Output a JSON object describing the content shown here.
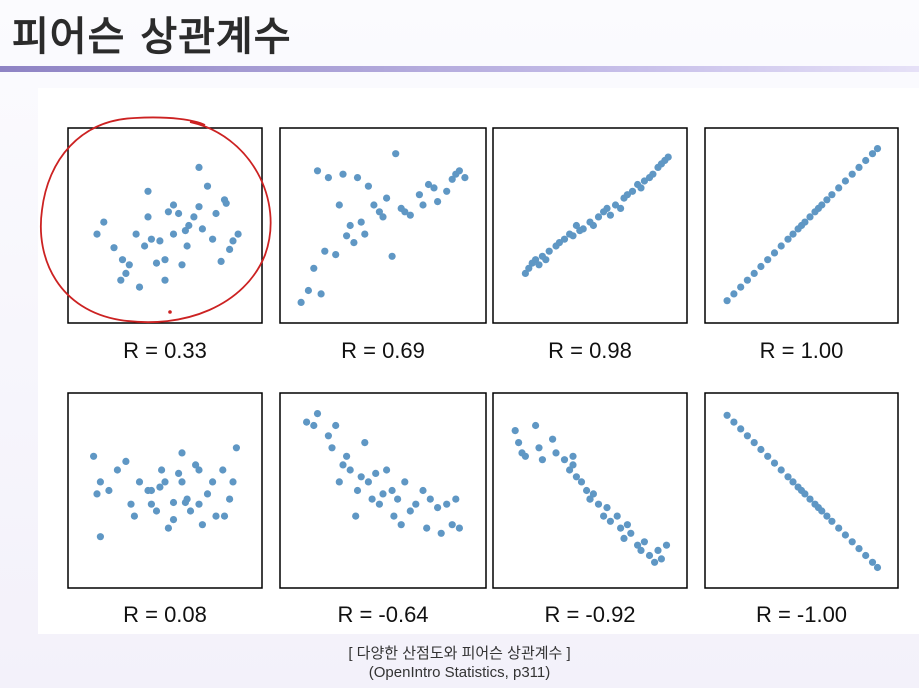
{
  "page": {
    "title": "피어슨 상관계수",
    "caption_line1": "[ 다양한 산점도와 피어슨 상관계수 ]",
    "caption_line2": "(OpenIntro Statistics, p311)"
  },
  "colors": {
    "point": "#5f97c4",
    "annotation": "#cc2222",
    "axis": "#000000"
  },
  "chart_data": [
    {
      "type": "scatter",
      "title": "R = 0.33",
      "highlighted": true,
      "x": [
        0.1,
        0.2,
        0.14,
        0.25,
        0.27,
        0.29,
        0.33,
        0.38,
        0.4,
        0.42,
        0.47,
        0.5,
        0.52,
        0.55,
        0.58,
        0.6,
        0.62,
        0.63,
        0.67,
        0.7,
        0.72,
        0.75,
        0.78,
        0.8,
        0.83,
        0.86,
        0.88,
        0.9,
        0.4,
        0.45,
        0.55,
        0.7,
        0.85,
        0.93,
        0.24,
        0.64,
        0.5,
        0.35
      ],
      "y": [
        0.45,
        0.37,
        0.52,
        0.3,
        0.22,
        0.27,
        0.45,
        0.38,
        0.55,
        0.42,
        0.41,
        0.3,
        0.58,
        0.45,
        0.57,
        0.27,
        0.47,
        0.38,
        0.55,
        0.61,
        0.48,
        0.73,
        0.42,
        0.57,
        0.29,
        0.63,
        0.36,
        0.41,
        0.7,
        0.28,
        0.62,
        0.84,
        0.65,
        0.45,
        0.18,
        0.5,
        0.18,
        0.14
      ]
    },
    {
      "type": "scatter",
      "title": "R = 0.69",
      "x": [
        0.05,
        0.09,
        0.12,
        0.16,
        0.18,
        0.2,
        0.24,
        0.26,
        0.3,
        0.32,
        0.34,
        0.36,
        0.38,
        0.4,
        0.42,
        0.45,
        0.48,
        0.5,
        0.52,
        0.55,
        0.6,
        0.62,
        0.65,
        0.7,
        0.72,
        0.75,
        0.78,
        0.8,
        0.85,
        0.88,
        0.9,
        0.92,
        0.95,
        0.14,
        0.28,
        0.57
      ],
      "y": [
        0.05,
        0.12,
        0.25,
        0.1,
        0.35,
        0.78,
        0.33,
        0.62,
        0.44,
        0.5,
        0.4,
        0.78,
        0.52,
        0.45,
        0.73,
        0.62,
        0.58,
        0.55,
        0.66,
        0.32,
        0.6,
        0.58,
        0.56,
        0.68,
        0.62,
        0.74,
        0.72,
        0.64,
        0.7,
        0.77,
        0.8,
        0.82,
        0.78,
        0.82,
        0.8,
        0.92
      ],
      "range_hint": "positive moderate"
    },
    {
      "type": "scatter",
      "title": "R = 0.98",
      "x": [
        0.12,
        0.14,
        0.16,
        0.18,
        0.2,
        0.22,
        0.24,
        0.26,
        0.3,
        0.32,
        0.35,
        0.38,
        0.4,
        0.42,
        0.44,
        0.46,
        0.5,
        0.52,
        0.55,
        0.58,
        0.6,
        0.62,
        0.65,
        0.68,
        0.7,
        0.72,
        0.75,
        0.78,
        0.8,
        0.82,
        0.85,
        0.87,
        0.9,
        0.92,
        0.94,
        0.96
      ],
      "y": [
        0.22,
        0.25,
        0.28,
        0.3,
        0.27,
        0.32,
        0.3,
        0.35,
        0.38,
        0.4,
        0.42,
        0.45,
        0.44,
        0.5,
        0.47,
        0.48,
        0.52,
        0.5,
        0.55,
        0.58,
        0.6,
        0.56,
        0.62,
        0.6,
        0.66,
        0.68,
        0.7,
        0.74,
        0.72,
        0.76,
        0.78,
        0.8,
        0.84,
        0.86,
        0.88,
        0.9
      ]
    },
    {
      "type": "scatter",
      "title": "R = 1.00",
      "x": [
        0.06,
        0.1,
        0.14,
        0.18,
        0.22,
        0.26,
        0.3,
        0.34,
        0.38,
        0.42,
        0.45,
        0.48,
        0.5,
        0.52,
        0.55,
        0.58,
        0.6,
        0.62,
        0.65,
        0.68,
        0.72,
        0.76,
        0.8,
        0.84,
        0.88,
        0.92,
        0.95
      ],
      "y": [
        0.06,
        0.1,
        0.14,
        0.18,
        0.22,
        0.26,
        0.3,
        0.34,
        0.38,
        0.42,
        0.45,
        0.48,
        0.5,
        0.52,
        0.55,
        0.58,
        0.6,
        0.62,
        0.65,
        0.68,
        0.72,
        0.76,
        0.8,
        0.84,
        0.88,
        0.92,
        0.95
      ]
    },
    {
      "type": "scatter",
      "title": "R = 0.08",
      "x": [
        0.08,
        0.1,
        0.12,
        0.17,
        0.22,
        0.27,
        0.32,
        0.35,
        0.4,
        0.42,
        0.45,
        0.48,
        0.5,
        0.52,
        0.55,
        0.58,
        0.6,
        0.62,
        0.65,
        0.68,
        0.7,
        0.72,
        0.75,
        0.78,
        0.8,
        0.84,
        0.88,
        0.9,
        0.92,
        0.42,
        0.47,
        0.3,
        0.6,
        0.7,
        0.85,
        0.12,
        0.55,
        0.63
      ],
      "y": [
        0.7,
        0.48,
        0.23,
        0.5,
        0.62,
        0.67,
        0.35,
        0.55,
        0.5,
        0.42,
        0.38,
        0.62,
        0.55,
        0.28,
        0.43,
        0.6,
        0.55,
        0.43,
        0.38,
        0.65,
        0.42,
        0.3,
        0.48,
        0.55,
        0.35,
        0.62,
        0.45,
        0.55,
        0.75,
        0.5,
        0.52,
        0.42,
        0.72,
        0.62,
        0.35,
        0.55,
        0.33,
        0.45
      ]
    },
    {
      "type": "scatter",
      "title": "R = -0.64",
      "x": [
        0.08,
        0.12,
        0.14,
        0.2,
        0.22,
        0.24,
        0.28,
        0.3,
        0.32,
        0.36,
        0.38,
        0.4,
        0.42,
        0.44,
        0.46,
        0.5,
        0.52,
        0.55,
        0.58,
        0.6,
        0.62,
        0.65,
        0.68,
        0.72,
        0.74,
        0.76,
        0.8,
        0.82,
        0.85,
        0.88,
        0.9,
        0.92,
        0.35,
        0.48,
        0.26,
        0.56
      ],
      "y": [
        0.9,
        0.88,
        0.95,
        0.82,
        0.75,
        0.88,
        0.65,
        0.7,
        0.62,
        0.5,
        0.58,
        0.78,
        0.55,
        0.45,
        0.6,
        0.48,
        0.62,
        0.5,
        0.45,
        0.3,
        0.55,
        0.38,
        0.42,
        0.5,
        0.28,
        0.45,
        0.4,
        0.25,
        0.42,
        0.3,
        0.45,
        0.28,
        0.35,
        0.42,
        0.55,
        0.35
      ]
    },
    {
      "type": "scatter",
      "title": "R = -0.92",
      "x": [
        0.06,
        0.08,
        0.1,
        0.12,
        0.18,
        0.2,
        0.22,
        0.28,
        0.3,
        0.35,
        0.38,
        0.4,
        0.42,
        0.45,
        0.48,
        0.5,
        0.52,
        0.55,
        0.58,
        0.6,
        0.62,
        0.66,
        0.68,
        0.7,
        0.72,
        0.74,
        0.78,
        0.8,
        0.82,
        0.85,
        0.88,
        0.9,
        0.92,
        0.95,
        0.4,
        0.5
      ],
      "y": [
        0.85,
        0.78,
        0.72,
        0.7,
        0.88,
        0.75,
        0.68,
        0.8,
        0.72,
        0.68,
        0.62,
        0.65,
        0.58,
        0.55,
        0.5,
        0.45,
        0.48,
        0.42,
        0.35,
        0.4,
        0.32,
        0.35,
        0.28,
        0.22,
        0.3,
        0.25,
        0.18,
        0.15,
        0.2,
        0.12,
        0.08,
        0.15,
        0.1,
        0.18,
        0.7,
        0.45
      ]
    },
    {
      "type": "scatter",
      "title": "R = -1.00",
      "x": [
        0.06,
        0.1,
        0.14,
        0.18,
        0.22,
        0.26,
        0.3,
        0.34,
        0.38,
        0.42,
        0.45,
        0.48,
        0.5,
        0.52,
        0.55,
        0.58,
        0.6,
        0.62,
        0.65,
        0.68,
        0.72,
        0.76,
        0.8,
        0.84,
        0.88,
        0.92,
        0.95
      ],
      "y": [
        0.94,
        0.9,
        0.86,
        0.82,
        0.78,
        0.74,
        0.7,
        0.66,
        0.62,
        0.58,
        0.55,
        0.52,
        0.5,
        0.48,
        0.45,
        0.42,
        0.4,
        0.38,
        0.35,
        0.32,
        0.28,
        0.24,
        0.2,
        0.16,
        0.12,
        0.08,
        0.05
      ]
    }
  ]
}
